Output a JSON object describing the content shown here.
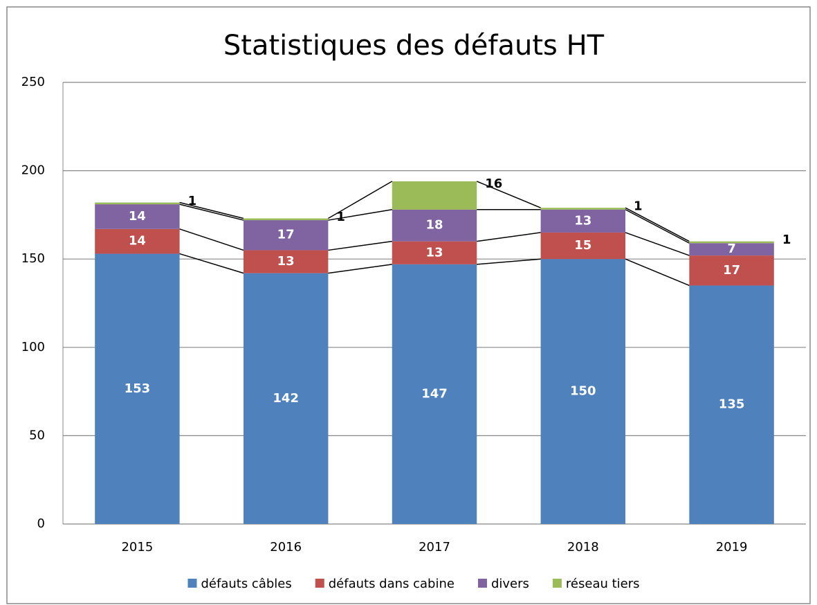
{
  "chart_data": {
    "type": "stacked_bar",
    "title": "Statistiques des défauts HT",
    "categories": [
      "2015",
      "2016",
      "2017",
      "2018",
      "2019"
    ],
    "series": [
      {
        "name": "défauts câbles",
        "color": "#4f81bd",
        "values": [
          153,
          142,
          147,
          150,
          135
        ]
      },
      {
        "name": "défauts dans cabine",
        "color": "#c0504d",
        "values": [
          14,
          13,
          13,
          15,
          17
        ]
      },
      {
        "name": "divers",
        "color": "#8064a2",
        "values": [
          14,
          17,
          18,
          13,
          7
        ]
      },
      {
        "name": "réseau tiers",
        "color": "#9bbb59",
        "values": [
          1,
          1,
          16,
          1,
          1
        ]
      }
    ],
    "ylim": [
      0,
      250
    ],
    "yticks": [
      0,
      50,
      100,
      150,
      200,
      250
    ],
    "grid": true,
    "legend": "bottom"
  }
}
